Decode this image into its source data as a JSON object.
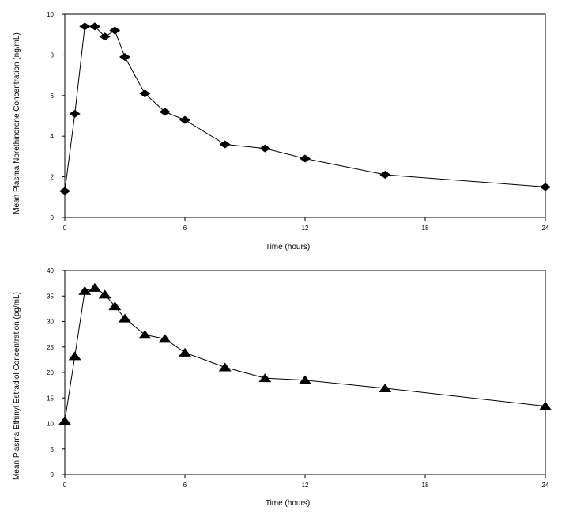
{
  "chart_data": [
    {
      "type": "line",
      "xlabel": "Time (hours)",
      "ylabel": "Mean Plasma Norethindrone Concentration (ng/mL)",
      "xlim": [
        0,
        24
      ],
      "ylim": [
        0,
        10
      ],
      "xticks": [
        0,
        6,
        12,
        18,
        24
      ],
      "yticks": [
        0,
        2,
        4,
        6,
        8,
        10
      ],
      "grid": false,
      "marker": "diamond",
      "series": [
        {
          "x": [
            0,
            0.5,
            1,
            1.5,
            2,
            2.5,
            3,
            4,
            5,
            6,
            8,
            10,
            12,
            16,
            24
          ],
          "y": [
            1.3,
            5.1,
            9.4,
            9.4,
            8.9,
            9.2,
            7.9,
            6.1,
            5.2,
            4.8,
            3.6,
            3.4,
            2.9,
            2.1,
            1.5
          ]
        }
      ]
    },
    {
      "type": "line",
      "xlabel": "Time (hours)",
      "ylabel": "Mean Plasma Ethinyl Estradiol Concentration (pg/mL)",
      "xlim": [
        0,
        24
      ],
      "ylim": [
        0,
        40
      ],
      "xticks": [
        0,
        6,
        12,
        18,
        24
      ],
      "yticks": [
        0,
        5,
        10,
        15,
        20,
        25,
        30,
        35,
        40
      ],
      "grid": false,
      "marker": "triangle",
      "series": [
        {
          "x": [
            0,
            0.5,
            1,
            1.5,
            2,
            2.5,
            3,
            4,
            5,
            6,
            8,
            10,
            12,
            16,
            24
          ],
          "y": [
            10.5,
            23.2,
            36.0,
            36.6,
            35.3,
            33.0,
            30.6,
            27.4,
            26.6,
            23.9,
            21.0,
            18.9,
            18.5,
            16.9,
            13.4
          ]
        }
      ]
    }
  ]
}
